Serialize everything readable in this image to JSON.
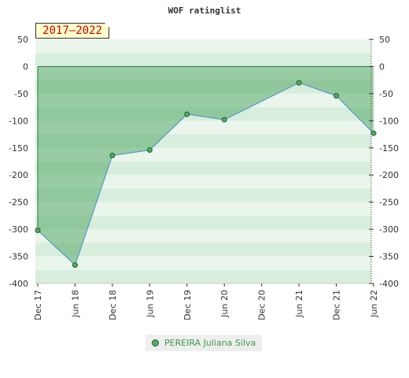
{
  "chart_data": {
    "type": "area",
    "title": "WOF ratinglist",
    "period_label": "2017–2022",
    "xlabel": "",
    "ylabel": "",
    "x_tick_labels": [
      "Dec 17",
      "Jun 18",
      "Dec 18",
      "Jun 19",
      "Dec 19",
      "Jun 20",
      "Dec 20",
      "Jun 21",
      "Dec 21",
      "Jun 22"
    ],
    "y_ticks": [
      50,
      0,
      -50,
      -100,
      -150,
      -200,
      -250,
      -300,
      -350,
      -400
    ],
    "ylim": [
      -400,
      50
    ],
    "x_index_range": [
      0,
      9
    ],
    "grid": true,
    "series": [
      {
        "name": "PEREIRA Juliana Silva",
        "color": "#55aa66",
        "points": [
          {
            "x": 0,
            "y": -302
          },
          {
            "x": 1,
            "y": -366
          },
          {
            "x": 2,
            "y": -164
          },
          {
            "x": 3,
            "y": -154
          },
          {
            "x": 4,
            "y": -88
          },
          {
            "x": 5,
            "y": -98
          },
          {
            "x": 7,
            "y": -30
          },
          {
            "x": 8,
            "y": -54
          },
          {
            "x": 9,
            "y": -123
          }
        ]
      }
    ],
    "legend_position": "bottom-center"
  }
}
